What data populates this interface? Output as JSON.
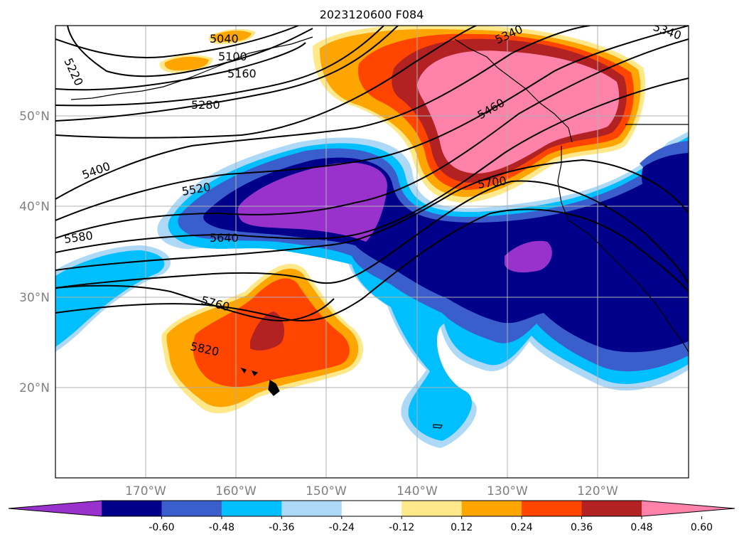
{
  "title": "2023120600 F084",
  "latitude_labels": [
    "50°N",
    "40°N",
    "30°N",
    "20°N"
  ],
  "longitude_labels": [
    "170°W",
    "160°W",
    "150°W",
    "140°W",
    "130°W",
    "120°W"
  ],
  "contour_labels": [
    "5040",
    "5100",
    "5160",
    "5220",
    "5280",
    "5340",
    "5340",
    "5400",
    "5460",
    "5520",
    "5580",
    "5640",
    "5700",
    "5760",
    "5820"
  ],
  "colorbar": {
    "tick_labels": [
      "-0.60",
      "-0.48",
      "-0.36",
      "-0.24",
      "-0.12",
      "0.12",
      "0.24",
      "0.36",
      "0.48",
      "0.60"
    ],
    "colors": [
      "#9932cc",
      "#00008b",
      "#3a5fcd",
      "#00bfff",
      "#add8f6",
      "#ffffff",
      "#ffe88a",
      "#ffa500",
      "#ff4500",
      "#b22222",
      "#ff82ab"
    ]
  }
}
